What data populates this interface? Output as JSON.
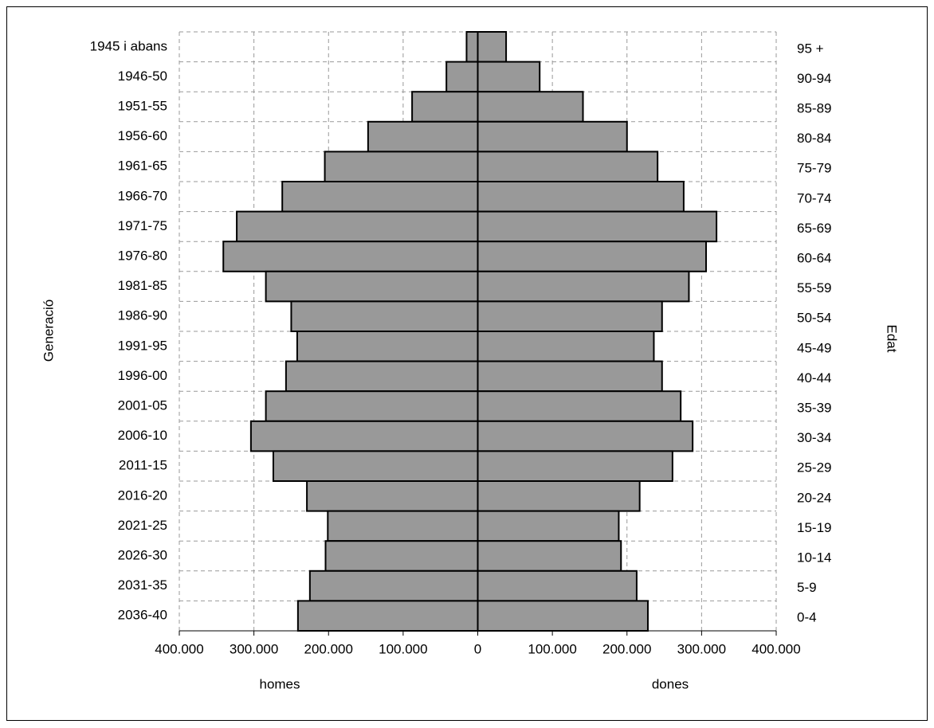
{
  "chart_data": {
    "type": "pyramid",
    "categories": [
      "1945 i abans",
      "1946-50",
      "1951-55",
      "1956-60",
      "1961-65",
      "1966-70",
      "1971-75",
      "1976-80",
      "1981-85",
      "1986-90",
      "1991-95",
      "1996-00",
      "2001-05",
      "2006-10",
      "2011-15",
      "2016-20",
      "2021-25",
      "2026-30",
      "2031-35",
      "2036-40"
    ],
    "categories_right": [
      "95 +",
      "90-94",
      "85-89",
      "80-84",
      "75-79",
      "70-74",
      "65-69",
      "60-64",
      "55-59",
      "50-54",
      "45-49",
      "40-44",
      "35-39",
      "30-34",
      "25-29",
      "20-24",
      "15-19",
      "10-14",
      "5-9",
      "0-4"
    ],
    "y_label": "Generació",
    "y2_label": "Edat",
    "series": [
      {
        "name": "homes",
        "color": "#999999",
        "values": [
          -15000,
          -42000,
          -88000,
          -147000,
          -205000,
          -262000,
          -323000,
          -341000,
          -284000,
          -250000,
          -242000,
          -257000,
          -284000,
          -304000,
          -274000,
          -229000,
          -201000,
          -204000,
          -225000,
          -241000
        ]
      },
      {
        "name": "dones",
        "color": "#999999",
        "values": [
          38000,
          83000,
          141000,
          200000,
          241000,
          276000,
          320000,
          306000,
          283000,
          247000,
          236000,
          247000,
          272000,
          288000,
          261000,
          217000,
          189000,
          192000,
          213000,
          228000
        ]
      }
    ],
    "xlim": [
      -400000,
      400000
    ],
    "xticks": [
      {
        "value": -400000,
        "label": "400.000"
      },
      {
        "value": -300000,
        "label": "300.000"
      },
      {
        "value": -200000,
        "label": "200.000"
      },
      {
        "value": -100000,
        "label": "100.000"
      },
      0,
      {
        "value": 100000,
        "label": "100.000"
      },
      {
        "value": 200000,
        "label": "200.000"
      },
      {
        "value": 300000,
        "label": "300.000"
      },
      {
        "value": 400000,
        "label": "400.000"
      }
    ],
    "grid": true
  }
}
